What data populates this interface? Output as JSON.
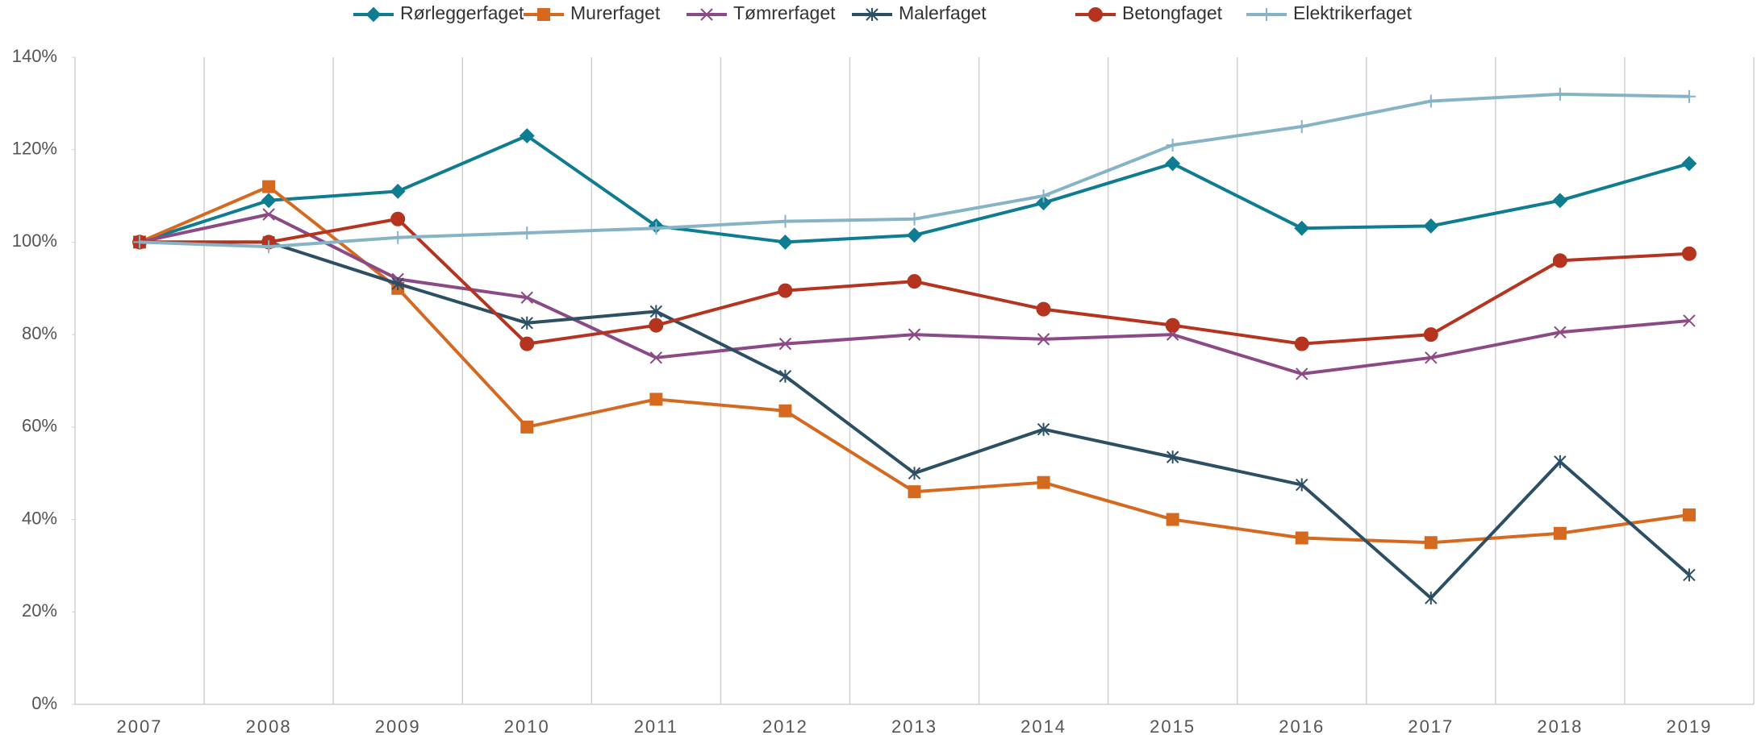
{
  "chart_data": {
    "type": "line",
    "categories": [
      "2007",
      "2008",
      "2009",
      "2010",
      "2011",
      "2012",
      "2013",
      "2014",
      "2015",
      "2016",
      "2017",
      "2018",
      "2019"
    ],
    "series": [
      {
        "name": "Rørleggerfaget",
        "color": "#0e7c91",
        "marker": "diamond",
        "values": [
          100,
          109,
          111,
          123,
          103.5,
          100,
          101.5,
          108.5,
          117,
          103,
          103.5,
          109,
          117
        ]
      },
      {
        "name": "Murerfaget",
        "color": "#d4691f",
        "marker": "square",
        "values": [
          100,
          112,
          90,
          60,
          66,
          63.5,
          46,
          48,
          40,
          36,
          35,
          37,
          41
        ]
      },
      {
        "name": "Tømrerfaget",
        "color": "#8b4a85",
        "marker": "x",
        "values": [
          100,
          106,
          92,
          88,
          75,
          78,
          80,
          79,
          80,
          71.5,
          75,
          80.5,
          83
        ]
      },
      {
        "name": "Malerfaget",
        "color": "#2c4f63",
        "marker": "asterisk",
        "values": [
          100,
          100,
          91,
          82.5,
          85,
          71,
          50,
          59.5,
          53.5,
          47.5,
          23,
          52.5,
          28
        ]
      },
      {
        "name": "Betongfaget",
        "color": "#b5341f",
        "marker": "circle",
        "values": [
          100,
          100,
          105,
          78,
          82,
          89.5,
          91.5,
          85.5,
          82,
          78,
          80,
          96,
          97.5
        ]
      },
      {
        "name": "Elektrikerfaget",
        "color": "#86b4c6",
        "marker": "plus",
        "values": [
          100,
          99,
          101,
          102,
          103,
          104.5,
          105,
          110,
          121,
          125,
          130.5,
          132,
          131.5
        ]
      }
    ],
    "ylim": [
      0,
      140
    ],
    "yticks": [
      {
        "value": 0,
        "label": "0%"
      },
      {
        "value": 20,
        "label": "20%"
      },
      {
        "value": 40,
        "label": "40%"
      },
      {
        "value": 60,
        "label": "60%"
      },
      {
        "value": 80,
        "label": "80%"
      },
      {
        "value": 100,
        "label": "100%"
      },
      {
        "value": 120,
        "label": "120%"
      },
      {
        "value": 140,
        "label": "140%"
      }
    ],
    "legend": "top"
  }
}
